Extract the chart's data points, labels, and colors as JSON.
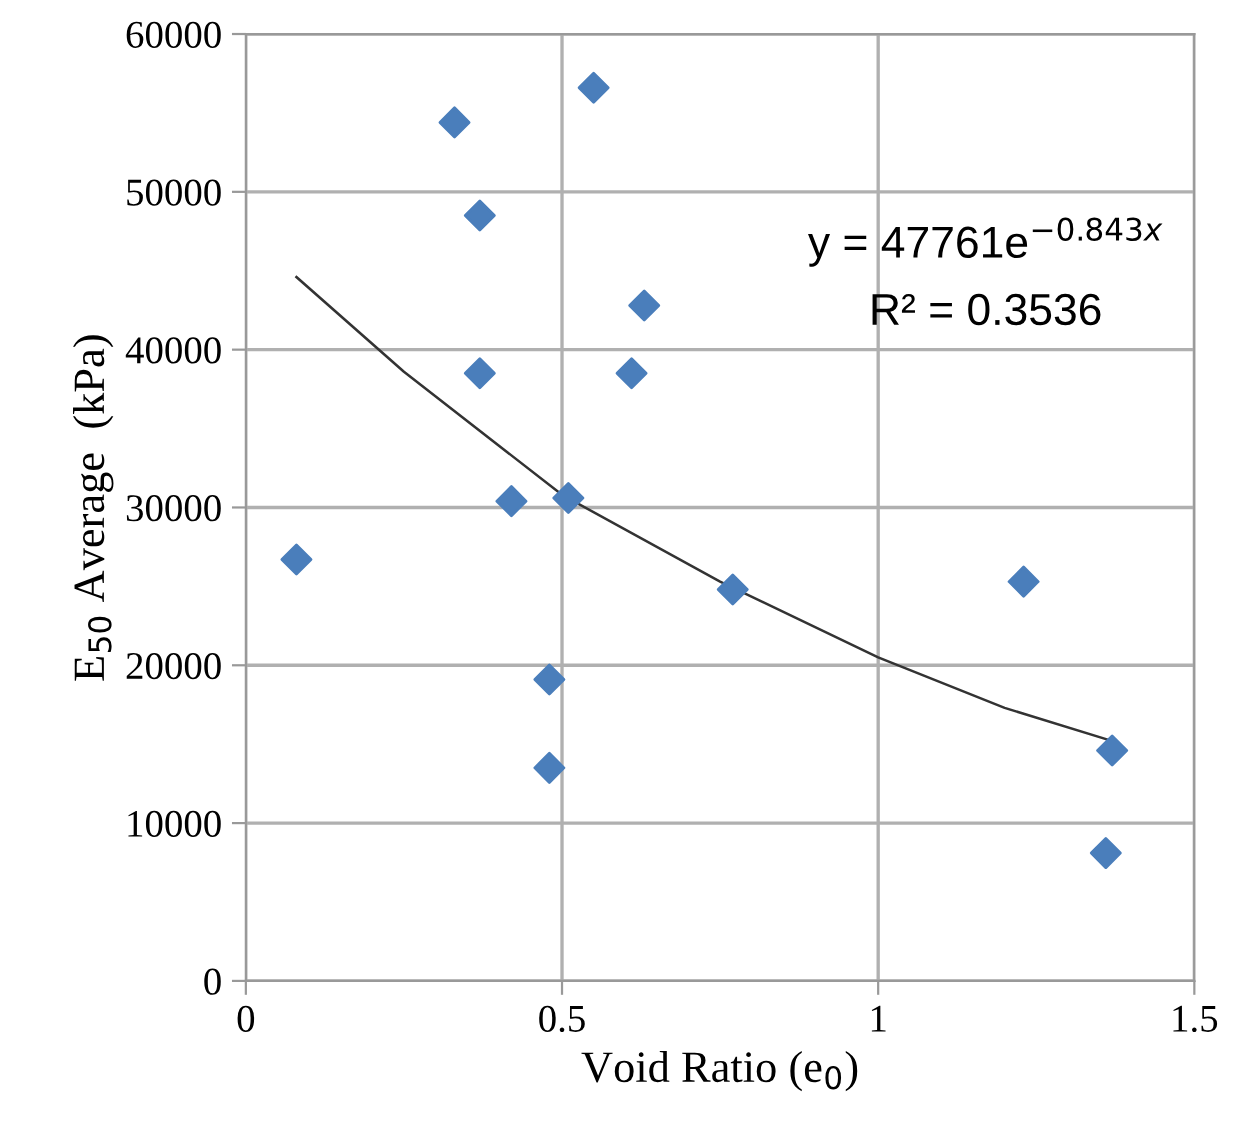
{
  "chart_data": {
    "type": "scatter",
    "xlabel": "Void Ratio (e$_{0}$)",
    "ylabel": "E$_{50}$ Average  (kPa)",
    "annotations": [
      "y = 47761e$^{−0.843x}$",
      "R² = 0.3536"
    ],
    "series": [
      {
        "color": "#4a7ebb",
        "marker": "diamond",
        "x": [
          0.08,
          0.33,
          0.37,
          0.37,
          0.42,
          0.48,
          0.48,
          0.51,
          0.55,
          0.61,
          0.63,
          0.77,
          1.23,
          1.37,
          1.36
        ],
        "values": [
          26700,
          54400,
          48500,
          38500,
          30400,
          19100,
          13500,
          30600,
          56600,
          38500,
          42800,
          24800,
          25300,
          14600,
          8100
        ]
      },
      {
        "type": "line",
        "color": "#333333",
        "marker": "none",
        "x": [
          0.08,
          0.25,
          0.5,
          0.75,
          1.0,
          1.2,
          1.37
        ],
        "values": [
          44600,
          38600,
          30800,
          25300,
          20500,
          17300,
          15200
        ]
      }
    ],
    "xlim": [
      0,
      1.5
    ],
    "xticks": [
      0,
      0.5,
      1,
      1.5
    ],
    "ylim": [
      0,
      60000
    ],
    "yticks": [
      0,
      10000,
      20000,
      30000,
      40000,
      50000,
      60000
    ],
    "grid": true,
    "legend": false
  }
}
